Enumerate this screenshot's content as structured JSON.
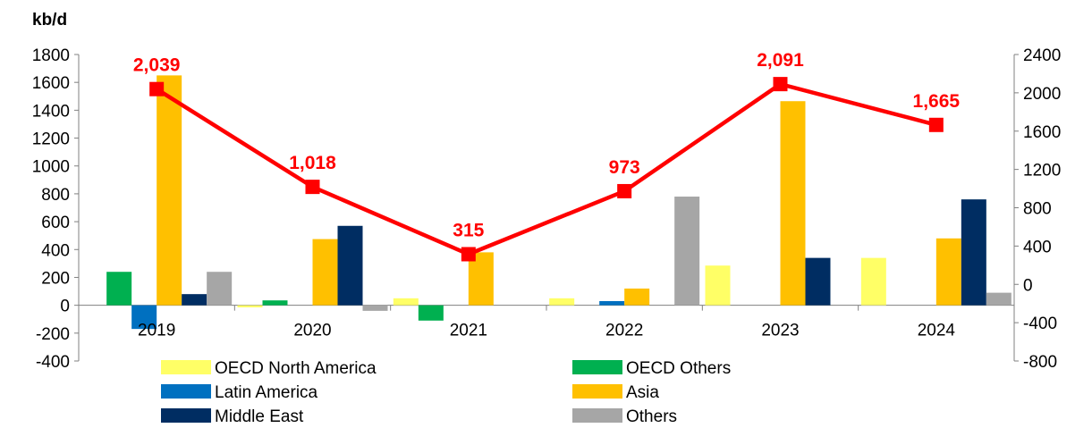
{
  "chart_data": {
    "type": "bar",
    "unit_label": "kb/d",
    "categories": [
      "2019",
      "2020",
      "2021",
      "2022",
      "2023",
      "2024"
    ],
    "left_axis": {
      "ylim": [
        -400,
        1800
      ],
      "ticks": [
        -400,
        -200,
        0,
        200,
        400,
        600,
        800,
        1000,
        1200,
        1400,
        1600,
        1800
      ]
    },
    "right_axis": {
      "ylim": [
        -800,
        2400
      ],
      "ticks": [
        -800,
        -400,
        0,
        400,
        800,
        1200,
        1600,
        2000,
        2400
      ]
    },
    "series": [
      {
        "name": "OECD North America",
        "color": "#ffff66",
        "axis": "left",
        "values": [
          0,
          -15,
          50,
          50,
          285,
          340
        ]
      },
      {
        "name": "OECD Others",
        "color": "#00b050",
        "axis": "left",
        "values": [
          240,
          35,
          -110,
          0,
          0,
          0
        ]
      },
      {
        "name": "Latin America",
        "color": "#0070c0",
        "axis": "left",
        "values": [
          -170,
          0,
          0,
          30,
          0,
          0
        ]
      },
      {
        "name": "Asia",
        "color": "#ffc000",
        "axis": "left",
        "values": [
          1650,
          475,
          380,
          120,
          1465,
          480
        ]
      },
      {
        "name": "Middle East",
        "color": "#002d62",
        "axis": "left",
        "values": [
          80,
          570,
          0,
          0,
          340,
          760
        ]
      },
      {
        "name": "Others",
        "color": "#a6a6a6",
        "axis": "left",
        "values": [
          240,
          -40,
          0,
          780,
          0,
          90
        ]
      }
    ],
    "line": {
      "color": "#ff0000",
      "axis": "right",
      "values": [
        2039,
        1018,
        315,
        973,
        2091,
        1665
      ],
      "labels": [
        "2,039",
        "1,018",
        "315",
        "973",
        "2,091",
        "1,665"
      ]
    },
    "legend": {
      "placement": "bottom",
      "items": [
        "OECD North America",
        "OECD Others",
        "Latin America",
        "Asia",
        "Middle East",
        "Others"
      ]
    }
  }
}
